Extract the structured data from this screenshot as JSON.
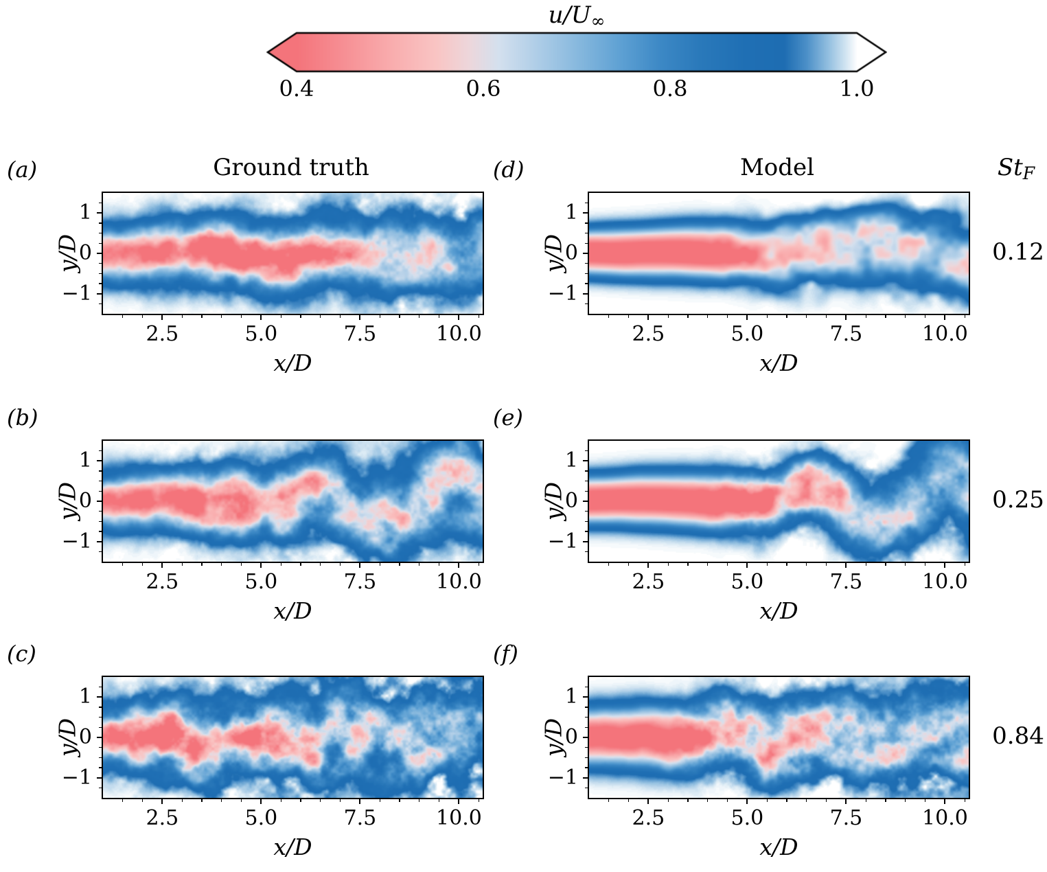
{
  "figure": {
    "colorbar": {
      "title_main": "u/U",
      "title_sub": "∞",
      "tick_labels": [
        "0.4",
        "0.6",
        "0.8",
        "1.0"
      ]
    },
    "columns": [
      {
        "label": "Ground truth"
      },
      {
        "label": "Model"
      }
    ],
    "st_header": {
      "main": "St",
      "sub": "F"
    },
    "rows": [
      {
        "st": "0.12"
      },
      {
        "st": "0.25"
      },
      {
        "st": "0.84"
      }
    ],
    "axes": {
      "xlabel": "x/D",
      "ylabel": "y/D",
      "xtick_labels": [
        "2.5",
        "5.0",
        "7.5",
        "10.0"
      ],
      "ytick_labels": [
        "1",
        "0",
        "−1"
      ]
    }
  },
  "chart_data": {
    "type": "heatmap",
    "quantity": "u/U∞ (normalized streamwise velocity contours of a forced turbulent wake)",
    "vmin": 0.4,
    "vmax": 1.0,
    "colorbar_ticks": [
      0.4,
      0.6,
      0.8,
      1.0
    ],
    "colorbar_extend": "both",
    "xlim": [
      1.0,
      10.6
    ],
    "ylim": [
      -1.5,
      1.5
    ],
    "xticks": [
      2.5,
      5.0,
      7.5,
      10.0
    ],
    "yticks": [
      1,
      0,
      -1
    ],
    "x_minor_step": 0.5,
    "y_minor_step": 0.25,
    "grid": false,
    "colormap_stops": [
      [
        0.0,
        "#f4747b"
      ],
      [
        0.08,
        "#f68e93"
      ],
      [
        0.17,
        "#f9adae"
      ],
      [
        0.25,
        "#f9c5c4"
      ],
      [
        0.31,
        "#ecd7dc"
      ],
      [
        0.36,
        "#d4e0ee"
      ],
      [
        0.43,
        "#aecde7"
      ],
      [
        0.5,
        "#88b9de"
      ],
      [
        0.58,
        "#5da0d3"
      ],
      [
        0.65,
        "#3c88c5"
      ],
      [
        0.72,
        "#2a79ba"
      ],
      [
        0.8,
        "#1f6fb4"
      ],
      [
        0.87,
        "#1e6db2"
      ],
      [
        0.91,
        "#4c90c8"
      ],
      [
        0.95,
        "#96c1e1"
      ],
      [
        0.98,
        "#d3e5f2"
      ],
      [
        1.0,
        "#ffffff"
      ]
    ],
    "panels": [
      {
        "id": "a",
        "label": "(a)",
        "column": "Ground truth",
        "St_F": 0.12,
        "description": "DNS snapshot: slender wake band |y/D|<0.8, speckled low-speed core u/U≈0.4–0.55 along centerline out to x/D≈10, thin blue shear layers u/U≈0.75–0.9 at the edges.",
        "field": {
          "seed": 11,
          "A0": 0.62,
          "pow": 2.0,
          "w0": 0.55,
          "wRate": 0.028,
          "coreLen": 5.5,
          "decay": 0.15,
          "mAmp": 0.09,
          "mLambda": 4.2,
          "mOnset": 2.0,
          "mRamp": 2.5,
          "mSign": 1,
          "nAmp": 0.26,
          "nScale": 1.6,
          "oct": 4,
          "nOnset": 1.0,
          "nRamp": 3.0,
          "nFloor": 0.55,
          "eAmp": 0.26,
          "eScale": 1.3,
          "eOct": 3,
          "eFloor": 0.5,
          "eOnset": 0.0,
          "eRamp": 5.0
        }
      },
      {
        "id": "b",
        "label": "(b)",
        "column": "Ground truth",
        "St_F": 0.25,
        "description": "DNS: straight wake with red core to x/D≈5, then strong sinuous meandering and large-scale vortex roll-up; mixed pink/blue turbulence spreading to |y/D|≈1.3.",
        "field": {
          "seed": 33,
          "A0": 0.63,
          "pow": 2.0,
          "w0": 0.55,
          "wRate": 0.03,
          "wRate2": 0.035,
          "wBreak": 5.0,
          "coreLen": 4.6,
          "decay": 0.12,
          "mAmp": 0.5,
          "mLambda": 3.7,
          "mOnset": 5.2,
          "mRamp": 2.0,
          "mSign": 1,
          "nAmp": 0.28,
          "nScale": 1.6,
          "oct": 4,
          "nOnset": 1.0,
          "nRamp": 3.5,
          "nFloor": 0.5,
          "eAmp": 0.3,
          "eScale": 1.4,
          "eOct": 3,
          "eFloor": 0.45,
          "eOnset": 0.0,
          "eRamp": 5.0
        }
      },
      {
        "id": "c",
        "label": "(c)",
        "column": "Ground truth",
        "St_F": 0.84,
        "description": "DNS: rapid breakup; wide turbulent band growing to |y/D|≈1.2 with ragged edges; short speckled red core to x/D≈3.5, mostly blue/pale mixing downstream.",
        "field": {
          "seed": 57,
          "A0": 0.62,
          "pow": 2.0,
          "w0": 0.62,
          "wRate": 0.05,
          "coreLen": 2.9,
          "decay": 0.15,
          "mAmp": 0.12,
          "mLambda": 2.6,
          "mOnset": 1.5,
          "mRamp": 2.0,
          "mSign": 1,
          "nAmp": 0.3,
          "nScale": 1.9,
          "oct": 4,
          "nOnset": 0.5,
          "nRamp": 2.5,
          "nFloor": 0.6,
          "eAmp": 0.4,
          "eScale": 1.7,
          "eOct": 3,
          "eFloor": 0.55,
          "eOnset": 0.0,
          "eRamp": 4.0
        }
      },
      {
        "id": "d",
        "label": "(d)",
        "column": "Model",
        "St_F": 0.12,
        "description": "Model prediction: smooth coherent low-speed core (u/U≈0.4) from x/D=1 to ≈4.5 tapering downstream; shear layers and downstream mixing reproduced with less fine-scale detail.",
        "field": {
          "seed": 27,
          "A0": 0.66,
          "pow": 2.6,
          "w0": 0.5,
          "wRate": 0.032,
          "coreLen": 4.3,
          "decay": 0.17,
          "mAmp": 0.16,
          "mLambda": 5.5,
          "mOnset": 4.0,
          "mRamp": 3.0,
          "mSign": -1,
          "nAmp": 0.24,
          "nScale": 1.4,
          "oct": 3,
          "nOnset": 3.0,
          "nRamp": 3.0,
          "nFloor": 0.0,
          "eAmp": 0.24,
          "eScale": 1.2,
          "eOct": 2,
          "eFloor": 0.12,
          "eOnset": 3.0,
          "eRamp": 4.0
        }
      },
      {
        "id": "e",
        "label": "(e)",
        "column": "Model",
        "St_F": 0.25,
        "description": "Model: clean red core to x/D≈4.5, meandering onset near x/D≈5.5 with large rollers and a low-speed pocket near x/D≈8; smoother than DNS.",
        "field": {
          "seed": 45,
          "A0": 0.66,
          "pow": 2.5,
          "w0": 0.52,
          "wRate": 0.03,
          "wRate2": 0.03,
          "wBreak": 5.0,
          "coreLen": 4.6,
          "decay": 0.14,
          "mAmp": 0.48,
          "mLambda": 3.8,
          "mOnset": 5.4,
          "mRamp": 2.0,
          "mSign": 1,
          "nAmp": 0.26,
          "nScale": 1.5,
          "oct": 4,
          "nOnset": 3.2,
          "nRamp": 2.5,
          "nFloor": 0.0,
          "eAmp": 0.27,
          "eScale": 1.3,
          "eOct": 3,
          "eFloor": 0.1,
          "eOnset": 3.0,
          "eRamp": 3.5
        }
      },
      {
        "id": "f",
        "label": "(f)",
        "column": "Model",
        "St_F": 0.84,
        "description": "Model: solid red core to x/D≈3.5, then progressively turbulent blue band with ragged spreading edges, similar width to DNS.",
        "field": {
          "seed": 69,
          "A0": 0.65,
          "pow": 2.4,
          "w0": 0.6,
          "wRate": 0.046,
          "coreLen": 3.2,
          "decay": 0.14,
          "mAmp": 0.12,
          "mLambda": 2.8,
          "mOnset": 2.2,
          "mRamp": 2.0,
          "mSign": -1,
          "nAmp": 0.28,
          "nScale": 1.8,
          "oct": 4,
          "nOnset": 2.2,
          "nRamp": 2.5,
          "nFloor": 0.1,
          "eAmp": 0.36,
          "eScale": 1.6,
          "eOct": 3,
          "eFloor": 0.15,
          "eOnset": 2.0,
          "eRamp": 3.5
        }
      }
    ]
  }
}
